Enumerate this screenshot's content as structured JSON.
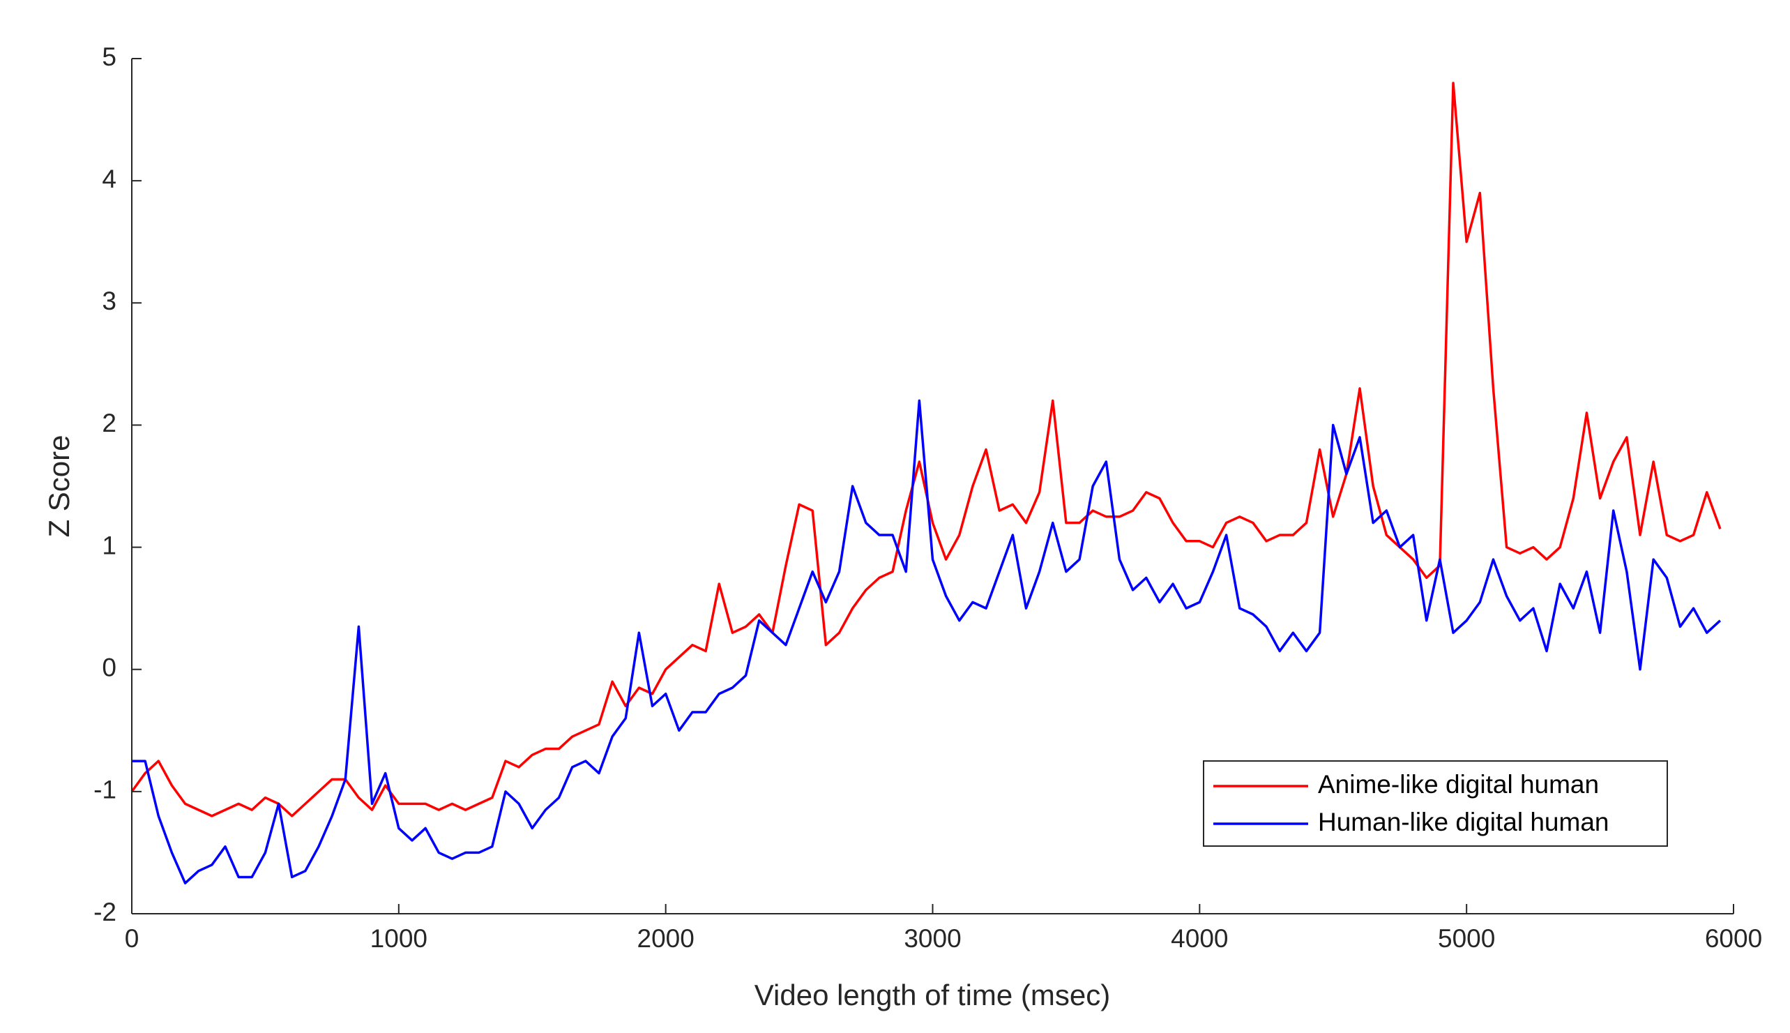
{
  "chart_data": {
    "type": "line",
    "xlabel": "Video length of time (msec)",
    "ylabel": "Z Score",
    "xlim": [
      0,
      6000
    ],
    "xticks": [
      0,
      1000,
      2000,
      3000,
      4000,
      5000,
      6000
    ],
    "ylim": [
      -2,
      5
    ],
    "yticks": [
      -2,
      -1,
      0,
      1,
      2,
      3,
      4,
      5
    ],
    "legend": "lower right",
    "x": [
      0,
      50,
      100,
      150,
      200,
      250,
      300,
      350,
      400,
      450,
      500,
      550,
      600,
      650,
      700,
      750,
      800,
      850,
      900,
      950,
      1000,
      1050,
      1100,
      1150,
      1200,
      1250,
      1300,
      1350,
      1400,
      1450,
      1500,
      1550,
      1600,
      1650,
      1700,
      1750,
      1800,
      1850,
      1900,
      1950,
      2000,
      2050,
      2100,
      2150,
      2200,
      2250,
      2300,
      2350,
      2400,
      2450,
      2500,
      2550,
      2600,
      2650,
      2700,
      2750,
      2800,
      2850,
      2900,
      2950,
      3000,
      3050,
      3100,
      3150,
      3200,
      3250,
      3300,
      3350,
      3400,
      3450,
      3500,
      3550,
      3600,
      3650,
      3700,
      3750,
      3800,
      3850,
      3900,
      3950,
      4000,
      4050,
      4100,
      4150,
      4200,
      4250,
      4300,
      4350,
      4400,
      4450,
      4500,
      4550,
      4600,
      4650,
      4700,
      4750,
      4800,
      4850,
      4900,
      4950,
      5000,
      5050,
      5100,
      5150,
      5200,
      5250,
      5300,
      5350,
      5400,
      5450,
      5500,
      5550,
      5600,
      5650,
      5700,
      5750,
      5800,
      5850,
      5900,
      5950
    ],
    "series": [
      {
        "name": "Anime-like digital human",
        "color": "#ff0000",
        "values": [
          -1.0,
          -0.85,
          -0.75,
          -0.95,
          -1.1,
          -1.15,
          -1.2,
          -1.15,
          -1.1,
          -1.15,
          -1.05,
          -1.1,
          -1.2,
          -1.1,
          -1.0,
          -0.9,
          -0.9,
          -1.05,
          -1.15,
          -0.95,
          -1.1,
          -1.1,
          -1.1,
          -1.15,
          -1.1,
          -1.15,
          -1.1,
          -1.05,
          -0.75,
          -0.8,
          -0.7,
          -0.65,
          -0.65,
          -0.55,
          -0.5,
          -0.45,
          -0.1,
          -0.3,
          -0.15,
          -0.2,
          0.0,
          0.1,
          0.2,
          0.15,
          0.7,
          0.3,
          0.35,
          0.45,
          0.3,
          0.85,
          1.35,
          1.3,
          0.2,
          0.3,
          0.5,
          0.65,
          0.75,
          0.8,
          1.3,
          1.7,
          1.2,
          0.9,
          1.1,
          1.5,
          1.8,
          1.3,
          1.35,
          1.2,
          1.45,
          2.2,
          1.2,
          1.2,
          1.3,
          1.25,
          1.25,
          1.3,
          1.45,
          1.4,
          1.2,
          1.05,
          1.05,
          1.0,
          1.2,
          1.25,
          1.2,
          1.05,
          1.1,
          1.1,
          1.2,
          1.8,
          1.25,
          1.6,
          2.3,
          1.5,
          1.1,
          1.0,
          0.9,
          0.75,
          0.85,
          4.8,
          3.5,
          3.9,
          2.3,
          1.0,
          0.95,
          1.0,
          0.9,
          1.0,
          1.4,
          2.1,
          1.4,
          1.7,
          1.9,
          1.1,
          1.7,
          1.1,
          1.05,
          1.1,
          1.45,
          1.15
        ]
      },
      {
        "name": "Human-like digital human",
        "color": "#0000ff",
        "values": [
          -0.75,
          -0.75,
          -1.2,
          -1.5,
          -1.75,
          -1.65,
          -1.6,
          -1.45,
          -1.7,
          -1.7,
          -1.5,
          -1.1,
          -1.7,
          -1.65,
          -1.45,
          -1.2,
          -0.9,
          0.35,
          -1.1,
          -0.85,
          -1.3,
          -1.4,
          -1.3,
          -1.5,
          -1.55,
          -1.5,
          -1.5,
          -1.45,
          -1.0,
          -1.1,
          -1.3,
          -1.15,
          -1.05,
          -0.8,
          -0.75,
          -0.85,
          -0.55,
          -0.4,
          0.3,
          -0.3,
          -0.2,
          -0.5,
          -0.35,
          -0.35,
          -0.2,
          -0.15,
          -0.05,
          0.4,
          0.3,
          0.2,
          0.5,
          0.8,
          0.55,
          0.8,
          1.5,
          1.2,
          1.1,
          1.1,
          0.8,
          2.2,
          0.9,
          0.6,
          0.4,
          0.55,
          0.5,
          0.8,
          1.1,
          0.5,
          0.8,
          1.2,
          0.8,
          0.9,
          1.5,
          1.7,
          0.9,
          0.65,
          0.75,
          0.55,
          0.7,
          0.5,
          0.55,
          0.8,
          1.1,
          0.5,
          0.45,
          0.35,
          0.15,
          0.3,
          0.15,
          0.3,
          2.0,
          1.6,
          1.9,
          1.2,
          1.3,
          1.0,
          1.1,
          0.4,
          0.9,
          0.3,
          0.4,
          0.55,
          0.9,
          0.6,
          0.4,
          0.5,
          0.15,
          0.7,
          0.5,
          0.8,
          0.3,
          1.3,
          0.8,
          0.0,
          0.9,
          0.75,
          0.35,
          0.5,
          0.3,
          0.4
        ]
      }
    ]
  }
}
